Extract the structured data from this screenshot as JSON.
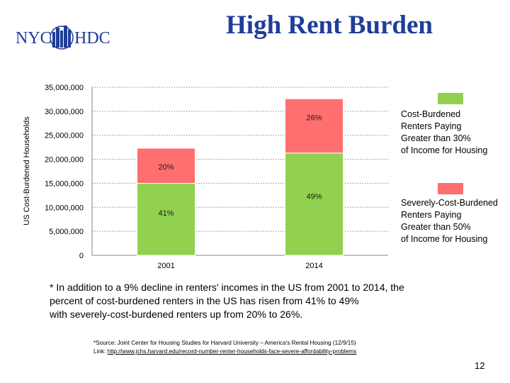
{
  "logo": {
    "left_text": "NYC",
    "right_text": "HDC"
  },
  "slide": {
    "title": "High Rent Burden",
    "footnote": "* In addition to a 9% decline in renters' incomes in the US from 2001 to 2014, the\n   percent of cost-burdened renters in the US has risen from 41% to 49%\n   with severely-cost-burdened renters up from 20% to 26%.",
    "source_text": "*Source: Joint Center for Housing Studies for Harvard University – America's Rental Housing (12/9/15)",
    "link_label": "Link:",
    "link_url": "http://www.jchs.harvard.edu/record-number-renter-households-face-severe-affordability-problems",
    "page_number": "12"
  },
  "chart_data": {
    "type": "bar",
    "stacked": true,
    "categories": [
      "2001",
      "2014"
    ],
    "ylabel": "US Cost-Burdened Households",
    "ylim": [
      0,
      35000000
    ],
    "yticks": [
      "0",
      "5,000,000",
      "10,000,000",
      "15,000,000",
      "20,000,000",
      "25,000,000",
      "30,000,000",
      "35,000,000"
    ],
    "grid": true,
    "series": [
      {
        "name": "Cost-Burdened Renters Paying Greater than 30% of Income for Housing",
        "color": "#92d050",
        "values": [
          15000000,
          21300000
        ],
        "labels": [
          "41%",
          "49%"
        ]
      },
      {
        "name": "Severely-Cost-Burdened Renters Paying Greater than 50% of Income for Housing",
        "color": "#ff6f6f",
        "values": [
          7300000,
          11300000
        ],
        "labels": [
          "20%",
          "26%"
        ]
      }
    ],
    "legend": {
      "position": "right",
      "items": [
        {
          "color": "#92d050",
          "text": "Cost-Burdened\nRenters Paying\nGreater than 30%\nof Income for Housing"
        },
        {
          "color": "#ff6f6f",
          "text": "Severely-Cost-Burdened\nRenters Paying\nGreater than 50%\nof Income for Housing"
        }
      ]
    }
  }
}
